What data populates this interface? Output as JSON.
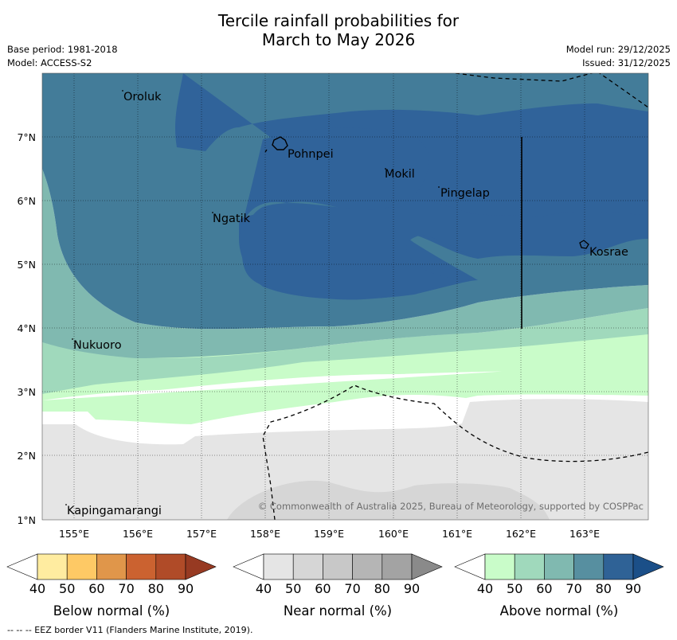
{
  "header": {
    "title_line1": "Tercile rainfall probabilities for",
    "title_line2": "March to May 2026",
    "base_period": "Base period: 1981-2018",
    "model": "Model: ACCESS-S2",
    "model_run": "Model run: 29/12/2025",
    "issued": "Issued: 31/12/2025"
  },
  "map": {
    "lat_labels": [
      "7°N",
      "6°N",
      "5°N",
      "4°N",
      "3°N",
      "2°N",
      "1°N"
    ],
    "lon_labels": [
      "155°E",
      "156°E",
      "157°E",
      "158°E",
      "159°E",
      "160°E",
      "161°E",
      "162°E",
      "163°E"
    ],
    "places": [
      "Oroluk",
      "Pohnpei",
      "Mokil",
      "Pingelap",
      "Ngatik",
      "Kosrae",
      "Nukuoro",
      "Kapingamarangi"
    ],
    "copyright": "© Commonwealth of Australia 2025, Bureau of Meteorology, supported by COSPPac"
  },
  "legend": {
    "ticks": [
      "40",
      "50",
      "60",
      "70",
      "80",
      "90"
    ],
    "below_label": "Below normal (%)",
    "near_label": "Near normal (%)",
    "above_label": "Above normal (%)",
    "below_colors": [
      "#ffffff",
      "#ffeca0",
      "#fec965",
      "#e0964a",
      "#cb6230",
      "#b04b28",
      "#973a22"
    ],
    "near_colors": [
      "#ffffff",
      "#e5e5e5",
      "#d6d6d6",
      "#c8c8c8",
      "#b5b5b5",
      "#a3a3a3",
      "#8a8a8a"
    ],
    "above_colors": [
      "#ffffff",
      "#c9fcc9",
      "#a0d9bc",
      "#80b9b0",
      "#578fa0",
      "#2f6296",
      "#1b4f88"
    ]
  },
  "footer": {
    "eez_note": "--  --  -- EEZ border V11 (Flanders Marine Institute, 2019)."
  }
}
